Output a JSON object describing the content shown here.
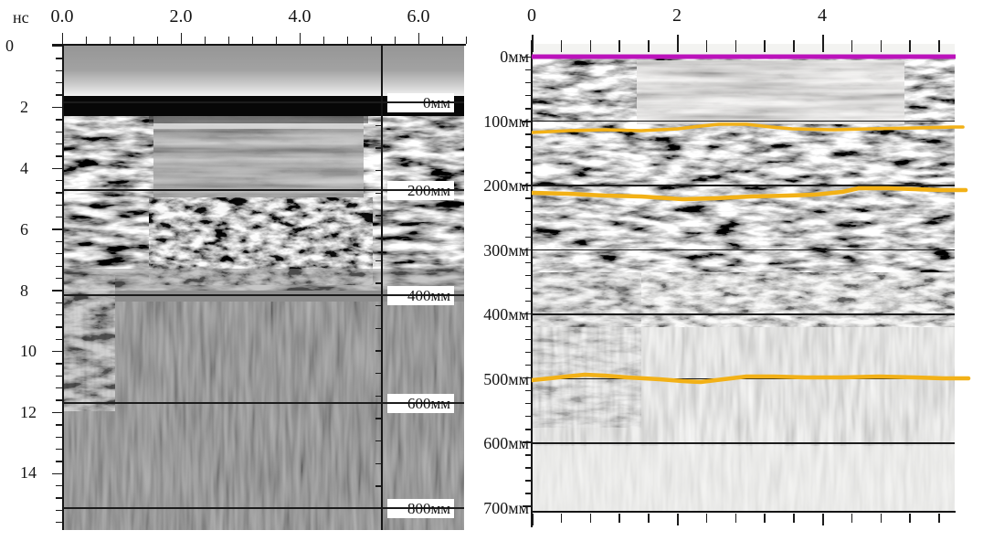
{
  "figure": {
    "description": "Two GPR radargram sections shown side by side"
  },
  "left_panel": {
    "unit_label": "нс",
    "top_axis_labels": [
      "0.0",
      "2.0",
      "4.0",
      "6.0"
    ],
    "time_axis_labels": [
      "0",
      "2",
      "4",
      "6",
      "8",
      "10",
      "12",
      "14"
    ],
    "depth_labels": [
      "0мм",
      "200мм",
      "400мм",
      "600мм",
      "800мм"
    ]
  },
  "right_panel": {
    "top_axis_labels": [
      "0",
      "2",
      "4"
    ],
    "depth_labels": [
      "0мм",
      "100мм",
      "200мм",
      "300мм",
      "400мм",
      "500мм",
      "600мм",
      "700мм"
    ]
  },
  "colors": {
    "surface_pick": "#bb12bb",
    "horizon_pick": "#f2b117",
    "axis": "#151515"
  },
  "chart_data": [
    {
      "type": "heatmap",
      "title": "GPR radargram A (time section with depth scale)",
      "x_axis": {
        "position": "top",
        "tick_labels": [
          "0.0",
          "2.0",
          "4.0",
          "6.0"
        ],
        "tick_values": [
          0.0,
          2.0,
          4.0,
          6.0
        ],
        "range": [
          0.0,
          6.8
        ]
      },
      "y_axis": {
        "label": "нс",
        "tick_labels": [
          "0",
          "2",
          "4",
          "6",
          "8",
          "10",
          "12",
          "14"
        ],
        "tick_values": [
          0,
          2,
          4,
          6,
          8,
          10,
          12,
          14
        ],
        "range": [
          0,
          15.9
        ]
      },
      "depth_scale": {
        "tick_labels": [
          "0мм",
          "200мм",
          "400мм",
          "600мм",
          "800мм"
        ],
        "values_mm": [
          0,
          200,
          400,
          600,
          800
        ],
        "time_ns_at_depth": [
          1.9,
          4.8,
          8.2,
          11.8,
          15.2
        ]
      },
      "grid": "horizontal lines at each labeled depth",
      "features": [
        "strong continuous black reflector at ~2 нс (0 мм datum)",
        "diffraction hyperbolas between ~0 and 300 мм",
        "homogeneous attenuated grey zone below ~400 мм"
      ]
    },
    {
      "type": "heatmap",
      "title": "GPR radargram B (depth section with picked horizons)",
      "x_axis": {
        "position": "top",
        "tick_labels": [
          "0",
          "2",
          "4"
        ],
        "tick_values": [
          0,
          2,
          4
        ],
        "range": [
          0,
          5.8
        ]
      },
      "y_axis": {
        "tick_labels": [
          "0мм",
          "100мм",
          "200мм",
          "300мм",
          "400мм",
          "500мм",
          "600мм",
          "700мм"
        ],
        "values_mm": [
          0,
          100,
          200,
          300,
          400,
          500,
          600,
          700
        ],
        "range_mm": [
          0,
          710
        ]
      },
      "grid": "horizontal lines every 100 мм",
      "horizons": [
        {
          "name": "surface pick",
          "color": "#bb12bb",
          "depth_mm": 0
        },
        {
          "name": "horizon 1",
          "color": "#f2b117",
          "depth_mm": 115
        },
        {
          "name": "horizon 2",
          "color": "#f2b117",
          "depth_mm": 213
        },
        {
          "name": "horizon 3",
          "color": "#f2b117",
          "depth_mm": 500
        }
      ]
    }
  ]
}
